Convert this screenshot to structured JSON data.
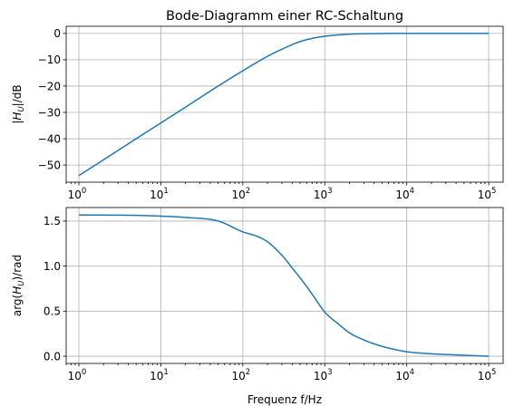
{
  "chart_data": [
    {
      "type": "line",
      "title": "Bode-Diagramm einer RC-Schaltung",
      "xlabel": "",
      "ylabel": "|H_U|/dB",
      "xscale": "log",
      "xlim": [
        0.7,
        150000
      ],
      "ylim": [
        -56.5,
        2.7
      ],
      "grid": true,
      "xticks": [
        {
          "base": "10",
          "exp": "0",
          "value": 1
        },
        {
          "base": "10",
          "exp": "1",
          "value": 10
        },
        {
          "base": "10",
          "exp": "2",
          "value": 100
        },
        {
          "base": "10",
          "exp": "3",
          "value": 1000
        },
        {
          "base": "10",
          "exp": "4",
          "value": 10000
        },
        {
          "base": "10",
          "exp": "5",
          "value": 100000
        }
      ],
      "yticks": [
        {
          "label": "0",
          "value": 0
        },
        {
          "label": "−10",
          "value": -10
        },
        {
          "label": "−20",
          "value": -20
        },
        {
          "label": "−30",
          "value": -30
        },
        {
          "label": "−40",
          "value": -40
        },
        {
          "label": "−50",
          "value": -50
        }
      ],
      "series": [
        {
          "color": "#1f77b4",
          "x": [
            1,
            2,
            5,
            10,
            20,
            50,
            100,
            200,
            300,
            500,
            700,
            1000,
            2000,
            5000,
            10000,
            100000
          ],
          "y": [
            -54.0,
            -48.0,
            -40.0,
            -34.0,
            -28.0,
            -20.0,
            -14.2,
            -8.7,
            -6.0,
            -3.1,
            -1.9,
            -1.1,
            -0.3,
            -0.05,
            0.0,
            0.0
          ]
        }
      ]
    },
    {
      "type": "line",
      "title": "",
      "xlabel": "Frequenz f/Hz",
      "ylabel": "arg(H_U)/rad",
      "xscale": "log",
      "xlim": [
        0.7,
        150000
      ],
      "ylim": [
        -0.08,
        1.65
      ],
      "grid": true,
      "xticks": [
        {
          "base": "10",
          "exp": "0",
          "value": 1
        },
        {
          "base": "10",
          "exp": "1",
          "value": 10
        },
        {
          "base": "10",
          "exp": "2",
          "value": 100
        },
        {
          "base": "10",
          "exp": "3",
          "value": 1000
        },
        {
          "base": "10",
          "exp": "4",
          "value": 10000
        },
        {
          "base": "10",
          "exp": "5",
          "value": 100000
        }
      ],
      "yticks": [
        {
          "label": "0.0",
          "value": 0
        },
        {
          "label": "0.5",
          "value": 0.5
        },
        {
          "label": "1.0",
          "value": 1.0
        },
        {
          "label": "1.5",
          "value": 1.5
        }
      ],
      "series": [
        {
          "color": "#1f77b4",
          "x": [
            1,
            5,
            10,
            20,
            50,
            100,
            150,
            200,
            300,
            400,
            500,
            700,
            1000,
            1500,
            2000,
            3000,
            5000,
            10000,
            20000,
            50000,
            100000
          ],
          "y": [
            1.568,
            1.563,
            1.555,
            1.54,
            1.5,
            1.38,
            1.33,
            1.27,
            1.12,
            0.98,
            0.87,
            0.69,
            0.49,
            0.35,
            0.26,
            0.18,
            0.11,
            0.05,
            0.027,
            0.011,
            0.0
          ]
        }
      ]
    }
  ]
}
